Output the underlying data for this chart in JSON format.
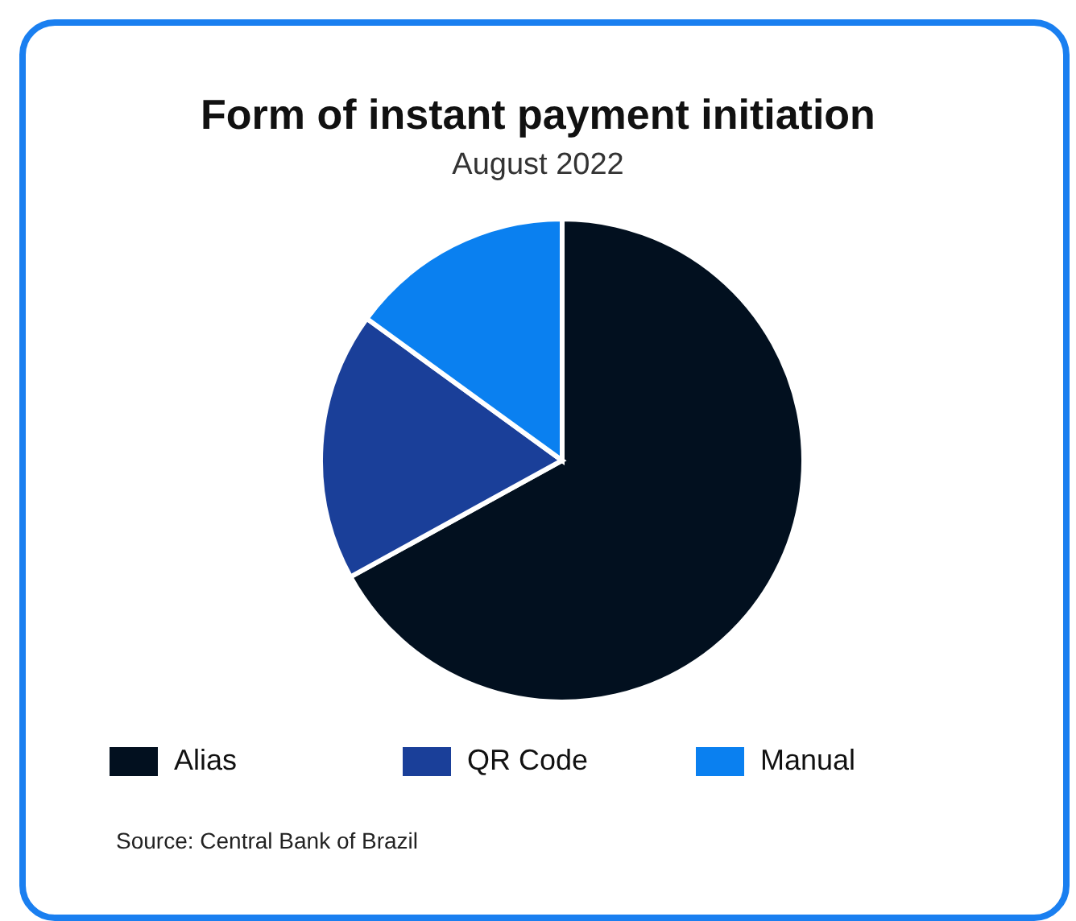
{
  "chart_data": {
    "type": "pie",
    "title": "Form of instant payment initiation",
    "subtitle": "August 2022",
    "categories": [
      "Alias",
      "QR Code",
      "Manual"
    ],
    "values": [
      67,
      18,
      15
    ],
    "colors": [
      "#02101f",
      "#1a3f99",
      "#0a80f0"
    ],
    "legend": "bottom",
    "annotations": [
      "Source: Central Bank of Brazil"
    ]
  }
}
